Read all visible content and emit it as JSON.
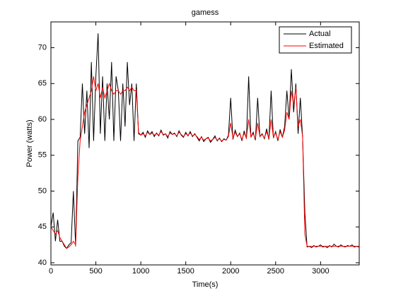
{
  "chart_data": {
    "type": "line",
    "title": "gamess",
    "xlabel": "Time(s)",
    "ylabel": "Power (watts)",
    "x": [
      0,
      25,
      50,
      75,
      100,
      125,
      150,
      175,
      200,
      225,
      250,
      275,
      300,
      325,
      350,
      375,
      400,
      425,
      450,
      475,
      500,
      525,
      550,
      575,
      600,
      625,
      650,
      675,
      700,
      725,
      750,
      775,
      800,
      825,
      850,
      875,
      900,
      925,
      950,
      975,
      1000,
      1025,
      1050,
      1075,
      1100,
      1125,
      1150,
      1175,
      1200,
      1225,
      1250,
      1275,
      1300,
      1325,
      1350,
      1375,
      1400,
      1425,
      1450,
      1475,
      1500,
      1525,
      1550,
      1575,
      1600,
      1625,
      1650,
      1675,
      1700,
      1725,
      1750,
      1775,
      1800,
      1825,
      1850,
      1875,
      1900,
      1925,
      1950,
      1975,
      2000,
      2025,
      2050,
      2075,
      2100,
      2125,
      2150,
      2175,
      2200,
      2225,
      2250,
      2275,
      2300,
      2325,
      2350,
      2375,
      2400,
      2425,
      2450,
      2475,
      2500,
      2525,
      2550,
      2575,
      2600,
      2625,
      2650,
      2675,
      2700,
      2725,
      2750,
      2775,
      2800,
      2825,
      2850,
      2875,
      2900,
      2925,
      2950,
      2975,
      3000,
      3025,
      3050,
      3075,
      3100,
      3125,
      3150,
      3175,
      3200,
      3225,
      3250,
      3275,
      3300,
      3325,
      3350,
      3375,
      3400,
      3425
    ],
    "series": [
      {
        "name": "Actual",
        "color": "#000000",
        "values": [
          45,
          47,
          43,
          46,
          43,
          43,
          42.3,
          42,
          42.5,
          42.8,
          50,
          42.3,
          57,
          57.5,
          65,
          58,
          64,
          56,
          68,
          57,
          66,
          72,
          58,
          66,
          57,
          65,
          60,
          68,
          57,
          66,
          64,
          57,
          65,
          59,
          68,
          62,
          65,
          57,
          65,
          58,
          57.8,
          58.2,
          57.5,
          58.4,
          57.9,
          58.3,
          57.6,
          58.1,
          57.7,
          58.5,
          57.8,
          58.0,
          57.4,
          58.3,
          57.9,
          58.1,
          57.6,
          58.4,
          57.8,
          57.5,
          58.2,
          57.7,
          58.3,
          57.6,
          58.0,
          57.5,
          57.0,
          57.6,
          56.9,
          57.3,
          57.5,
          56.8,
          57.2,
          57.7,
          57.0,
          57.4,
          56.9,
          57.3,
          57.1,
          57.8,
          63,
          57.2,
          58.5,
          57.6,
          58.1,
          57.0,
          58.4,
          57.3,
          66,
          57.5,
          58.2,
          57.1,
          63,
          57.6,
          58.0,
          57.3,
          58.7,
          57.2,
          64,
          57.4,
          58.3,
          57.0,
          58.6,
          57.5,
          59,
          64,
          60,
          67,
          61,
          65,
          58,
          63,
          57.5,
          47,
          42.2,
          42.3,
          42.1,
          42.4,
          42.2,
          42.3,
          42.5,
          42.2,
          42.3,
          42.1,
          42.4,
          42.2,
          42.6,
          42.3,
          42.2,
          42.5,
          42.3,
          42.2,
          42.4,
          42.3,
          42.5,
          42.2,
          42.3,
          42.2
        ]
      },
      {
        "name": "Estimated",
        "color": "#ff0000",
        "values": [
          45,
          44.5,
          44,
          44.5,
          43.5,
          43,
          42.5,
          42,
          42.2,
          42.5,
          43,
          42.5,
          52,
          57,
          59,
          61,
          62,
          63,
          64,
          66,
          64,
          65,
          63,
          64.5,
          63,
          64,
          65,
          64,
          63.5,
          64,
          64,
          63.5,
          64,
          64,
          64.5,
          64,
          64.5,
          64,
          64,
          58.2,
          57.8,
          58.0,
          57.7,
          58.2,
          57.9,
          58.1,
          57.8,
          58.0,
          57.8,
          58.3,
          57.9,
          58.0,
          57.6,
          58.1,
          57.9,
          58.0,
          57.7,
          58.2,
          57.9,
          57.6,
          58.0,
          57.8,
          58.1,
          57.7,
          57.9,
          57.6,
          57.2,
          57.5,
          57.1,
          57.3,
          57.4,
          57.0,
          57.2,
          57.5,
          57.1,
          57.3,
          57.0,
          57.2,
          57.1,
          57.6,
          59.5,
          57.4,
          58.2,
          57.6,
          58.0,
          57.2,
          58.1,
          57.4,
          60,
          57.6,
          58.0,
          57.3,
          59.5,
          57.6,
          57.9,
          57.4,
          58.3,
          57.3,
          60,
          57.5,
          58.1,
          57.2,
          58.3,
          57.5,
          58.5,
          61,
          60,
          64,
          62,
          64.5,
          59,
          60,
          57.6,
          44,
          42.3,
          42.3,
          42.3,
          42.3,
          42.3,
          42.3,
          42.3,
          42.3,
          42.3,
          42.3,
          42.3,
          42.3,
          42.3,
          42.3,
          42.3,
          42.3,
          42.3,
          42.3,
          42.3,
          42.3,
          42.3,
          42.3,
          42.3,
          42.3
        ]
      }
    ],
    "xlim": [
      0,
      3430
    ],
    "ylim": [
      39.7,
      73.6
    ],
    "xticks": [
      0,
      500,
      1000,
      1500,
      2000,
      2500,
      3000
    ],
    "yticks": [
      40,
      45,
      50,
      55,
      60,
      65,
      70
    ],
    "legend": "northeast"
  }
}
